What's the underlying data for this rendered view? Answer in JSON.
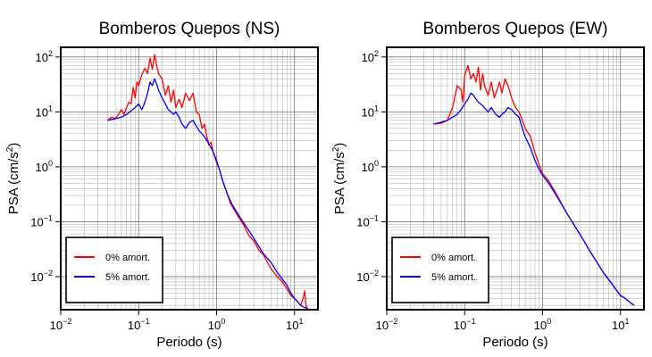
{
  "chart_data": [
    {
      "type": "line",
      "title": "Bomberos Quepos (NS)",
      "xlabel": "Periodo (s)",
      "ylabel": "PSA (cm/s²)",
      "xscale": "log",
      "yscale": "log",
      "xlim": [
        0.01,
        20
      ],
      "ylim": [
        0.0025,
        150
      ],
      "grid": true,
      "legend": "bottom-left",
      "series": [
        {
          "name": "0% amort.",
          "color": "#ff0000",
          "x": [
            0.04,
            0.045,
            0.05,
            0.055,
            0.06,
            0.065,
            0.07,
            0.075,
            0.08,
            0.085,
            0.09,
            0.095,
            0.1,
            0.11,
            0.12,
            0.13,
            0.14,
            0.15,
            0.16,
            0.17,
            0.18,
            0.2,
            0.22,
            0.24,
            0.26,
            0.28,
            0.3,
            0.33,
            0.36,
            0.4,
            0.45,
            0.5,
            0.55,
            0.6,
            0.65,
            0.7,
            0.75,
            0.8,
            0.85,
            0.9,
            1.0,
            1.1,
            1.2,
            1.3,
            1.5,
            1.7,
            2.0,
            2.3,
            2.6,
            3.0,
            3.5,
            4.0,
            4.5,
            5.0,
            6.0,
            7.0,
            8.0,
            9.0,
            10.0,
            11.0,
            12.0,
            13.0,
            13.5,
            14.0,
            15.0
          ],
          "y": [
            7,
            8,
            7.5,
            9,
            11,
            9,
            12,
            15,
            14,
            28,
            18,
            35,
            30,
            48,
            62,
            50,
            95,
            60,
            110,
            70,
            50,
            40,
            20,
            30,
            15,
            25,
            12,
            17,
            12,
            22,
            16,
            22,
            10,
            9,
            5,
            6,
            3.5,
            2.5,
            2.8,
            1.9,
            1.2,
            0.85,
            0.55,
            0.4,
            0.22,
            0.16,
            0.11,
            0.08,
            0.055,
            0.045,
            0.03,
            0.025,
            0.018,
            0.014,
            0.01,
            0.008,
            0.006,
            0.0045,
            0.004,
            0.0035,
            0.003,
            0.0042,
            0.0055,
            0.003,
            0.0025
          ]
        },
        {
          "name": "5% amort.",
          "color": "#0000ff",
          "x": [
            0.04,
            0.05,
            0.06,
            0.07,
            0.08,
            0.09,
            0.1,
            0.11,
            0.12,
            0.13,
            0.14,
            0.15,
            0.16,
            0.17,
            0.18,
            0.2,
            0.22,
            0.24,
            0.26,
            0.28,
            0.3,
            0.33,
            0.36,
            0.4,
            0.45,
            0.5,
            0.55,
            0.6,
            0.65,
            0.7,
            0.8,
            0.9,
            1.0,
            1.1,
            1.2,
            1.4,
            1.6,
            2.0,
            2.5,
            3.0,
            3.5,
            4.0,
            5.0,
            6.0,
            7.0,
            8.0,
            9.0,
            10.0,
            11.0,
            12.0,
            13.0,
            14.0,
            15.0
          ],
          "y": [
            7,
            7.5,
            8,
            9,
            10.5,
            12,
            14,
            11,
            15,
            22,
            35,
            30,
            40,
            32,
            25,
            18,
            14,
            11,
            10,
            9,
            10,
            8,
            6,
            5,
            6.5,
            7,
            5.5,
            4.5,
            4,
            3.5,
            2.6,
            1.9,
            1.3,
            0.85,
            0.55,
            0.3,
            0.2,
            0.12,
            0.075,
            0.05,
            0.035,
            0.026,
            0.018,
            0.012,
            0.009,
            0.007,
            0.005,
            0.004,
            0.0035,
            0.003,
            0.0028,
            0.0027,
            0.0025
          ]
        }
      ]
    },
    {
      "type": "line",
      "title": "Bomberos Quepos (EW)",
      "xlabel": "Periodo (s)",
      "ylabel": "PSA (cm/s²)",
      "xscale": "log",
      "yscale": "log",
      "xlim": [
        0.01,
        20
      ],
      "ylim": [
        0.0025,
        150
      ],
      "grid": true,
      "legend": "bottom-left",
      "series": [
        {
          "name": "0% amort.",
          "color": "#ff0000",
          "x": [
            0.04,
            0.05,
            0.06,
            0.07,
            0.08,
            0.09,
            0.095,
            0.1,
            0.11,
            0.12,
            0.13,
            0.14,
            0.15,
            0.16,
            0.17,
            0.18,
            0.2,
            0.22,
            0.24,
            0.26,
            0.28,
            0.3,
            0.33,
            0.36,
            0.4,
            0.45,
            0.5,
            0.55,
            0.6,
            0.7,
            0.8,
            0.9,
            1.0,
            1.2,
            1.5,
            2.0,
            2.5,
            3.0,
            4.0,
            5.0,
            6.0,
            7.0,
            8.0,
            9.0,
            10.0,
            11.0,
            12.0,
            13.0,
            14.0,
            15.0
          ],
          "y": [
            6,
            6.2,
            7,
            12,
            30,
            25,
            15,
            45,
            70,
            40,
            50,
            35,
            65,
            25,
            50,
            30,
            20,
            35,
            18,
            25,
            35,
            22,
            40,
            30,
            18,
            12,
            10,
            7,
            5,
            3.5,
            1.8,
            1.1,
            0.75,
            0.55,
            0.32,
            0.15,
            0.09,
            0.06,
            0.03,
            0.018,
            0.012,
            0.009,
            0.007,
            0.0055,
            0.0045,
            0.0042,
            0.0038,
            0.0035,
            0.0032,
            0.003
          ]
        },
        {
          "name": "5% amort.",
          "color": "#0000ff",
          "x": [
            0.04,
            0.05,
            0.06,
            0.07,
            0.08,
            0.09,
            0.1,
            0.11,
            0.12,
            0.13,
            0.14,
            0.15,
            0.17,
            0.2,
            0.22,
            0.25,
            0.28,
            0.3,
            0.33,
            0.36,
            0.4,
            0.45,
            0.5,
            0.55,
            0.6,
            0.7,
            0.8,
            0.9,
            1.0,
            1.2,
            1.5,
            2.0,
            2.5,
            3.0,
            4.0,
            5.0,
            6.0,
            7.0,
            8.0,
            9.0,
            10.0,
            11.0,
            12.0,
            13.0,
            14.0,
            15.0
          ],
          "y": [
            6,
            6.5,
            7,
            8,
            9,
            11,
            14,
            17,
            22,
            20,
            17,
            15,
            13,
            10,
            12,
            9,
            8,
            9,
            10,
            12,
            11,
            9,
            8,
            5,
            3.5,
            2.2,
            1.3,
            0.9,
            0.7,
            0.5,
            0.3,
            0.15,
            0.09,
            0.06,
            0.03,
            0.018,
            0.012,
            0.009,
            0.007,
            0.0055,
            0.0045,
            0.0042,
            0.0038,
            0.0035,
            0.0032,
            0.003
          ]
        }
      ]
    }
  ]
}
